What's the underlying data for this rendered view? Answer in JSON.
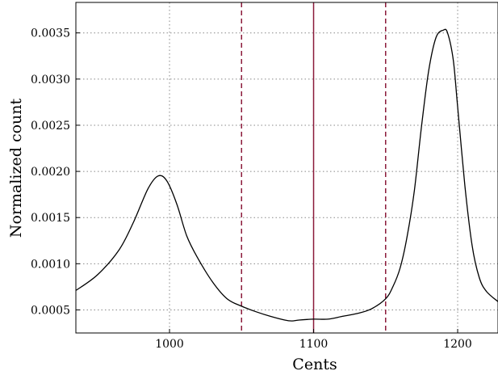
{
  "chart_data": {
    "type": "line",
    "xlabel": "Cents",
    "ylabel": "Normalized count",
    "xlim": [
      935,
      1228
    ],
    "ylim": [
      0.00025,
      0.00383
    ],
    "grid": true,
    "x_ticks": [
      1000,
      1100,
      1200
    ],
    "x_tick_labels": [
      "1000",
      "1100",
      "1200"
    ],
    "y_ticks": [
      0.0005,
      0.001,
      0.0015,
      0.002,
      0.0025,
      0.003,
      0.0035
    ],
    "y_tick_labels": [
      "0.0005",
      "0.0010",
      "0.0015",
      "0.0020",
      "0.0025",
      "0.0030",
      "0.0035"
    ],
    "series": [
      {
        "color": "#000000",
        "x": [
          935,
          950,
          965,
          975,
          985,
          992,
          998,
          1005,
          1012,
          1020,
          1030,
          1040,
          1050,
          1060,
          1070,
          1080,
          1085,
          1090,
          1100,
          1110,
          1120,
          1130,
          1140,
          1150,
          1155,
          1160,
          1165,
          1170,
          1175,
          1180,
          1185,
          1190,
          1193,
          1197,
          1200,
          1205,
          1210,
          1215,
          1220,
          1228
        ],
        "y": [
          0.00071,
          0.00088,
          0.00115,
          0.00145,
          0.00181,
          0.00195,
          0.0019,
          0.00165,
          0.0013,
          0.00105,
          0.0008,
          0.00062,
          0.00054,
          0.00048,
          0.00043,
          0.00039,
          0.00038,
          0.00039,
          0.0004,
          0.0004,
          0.00043,
          0.00046,
          0.00051,
          0.00062,
          0.00075,
          0.00095,
          0.0013,
          0.0018,
          0.0025,
          0.0031,
          0.00345,
          0.00353,
          0.0035,
          0.0032,
          0.0027,
          0.00185,
          0.0012,
          0.00085,
          0.0007,
          0.00059
        ]
      }
    ],
    "vlines": [
      {
        "x": 1050,
        "style": "dashed",
        "color": "#8b1a3a"
      },
      {
        "x": 1100,
        "style": "solid",
        "color": "#8b1a3a"
      },
      {
        "x": 1150,
        "style": "dashed",
        "color": "#8b1a3a"
      }
    ]
  }
}
